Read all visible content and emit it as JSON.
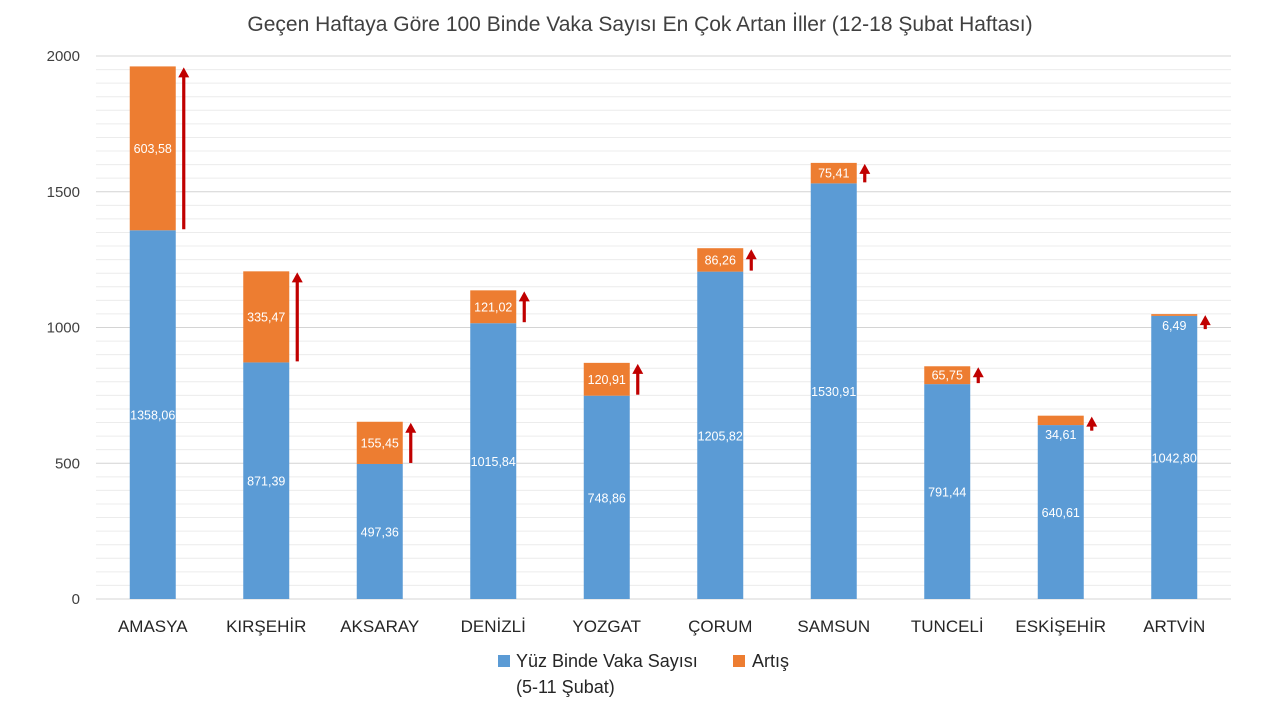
{
  "chart_data": {
    "type": "bar",
    "stacked": true,
    "title": "Geçen Haftaya Göre 100 Binde Vaka Sayısı En Çok Artan İller (12-18 Şubat Haftası)",
    "xlabel": "",
    "ylabel": "",
    "ylim": [
      0,
      2000
    ],
    "yticks": [
      "0",
      "500",
      "1000",
      "1500",
      "2000"
    ],
    "ytick_values": [
      0,
      500,
      1000,
      1500,
      2000
    ],
    "grid": true,
    "legend_position": "bottom",
    "categories": [
      "AMASYA",
      "KIRŞEHİR",
      "AKSARAY",
      "DENİZLİ",
      "YOZGAT",
      "ÇORUM",
      "SAMSUN",
      "TUNCELİ",
      "ESKİŞEHİR",
      "ARTVİN"
    ],
    "series": [
      {
        "name": "Yüz Binde Vaka Sayısı (5-11 Şubat)",
        "name_lines": [
          "Yüz Binde Vaka Sayısı",
          "(5-11 Şubat)"
        ],
        "color": "#5b9bd5",
        "values": [
          1358.06,
          871.39,
          497.36,
          1015.84,
          748.86,
          1205.82,
          1530.91,
          791.44,
          640.61,
          1042.8
        ],
        "labels": [
          "1358,06",
          "871,39",
          "497,36",
          "1015,84",
          "748,86",
          "1205,82",
          "1530,91",
          "791,44",
          "640,61",
          "1042,80"
        ]
      },
      {
        "name": "Artış",
        "name_lines": [
          "Artış"
        ],
        "color": "#ed7d31",
        "values": [
          603.58,
          335.47,
          155.45,
          121.02,
          120.91,
          86.26,
          75.41,
          65.75,
          34.61,
          6.49
        ],
        "labels": [
          "603,58",
          "335,47",
          "155,45",
          "121,02",
          "120,91",
          "86,26",
          "75,41",
          "65,75",
          "34,61",
          "6,49"
        ]
      }
    ],
    "arrow_color": "#c00000"
  }
}
